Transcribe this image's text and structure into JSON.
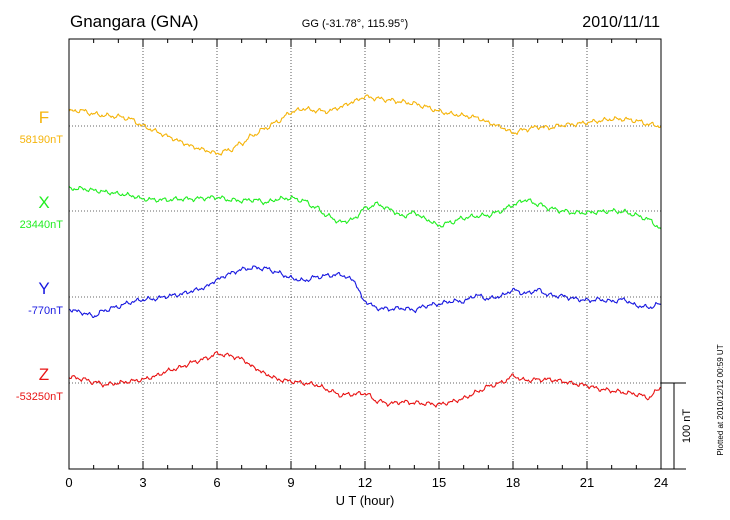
{
  "header": {
    "station": "Gnangara (GNA)",
    "coords": "GG (-31.78°, 115.95°)",
    "date": "2010/11/11"
  },
  "footer": {
    "plotted": "Plotted at 2010/12/12 00:59 UT"
  },
  "chart_data": {
    "type": "line",
    "title": "Gnangara (GNA)",
    "xlabel": "U T (hour)",
    "xlim": [
      0,
      24
    ],
    "x_ticks": [
      0,
      3,
      6,
      9,
      12,
      15,
      18,
      21,
      24
    ],
    "x_tick_labels": [
      "0",
      "3",
      "6",
      "9",
      "12",
      "15",
      "18",
      "21",
      "24"
    ],
    "grid": true,
    "scale_bar": {
      "label": "100 nT",
      "value_nT": 100
    },
    "x": [
      0,
      0.5,
      1,
      1.5,
      2,
      2.5,
      3,
      3.5,
      4,
      4.5,
      5,
      5.5,
      6,
      6.5,
      7,
      7.5,
      8,
      8.5,
      9,
      9.5,
      10,
      10.5,
      11,
      11.5,
      12,
      12.5,
      13,
      13.5,
      14,
      14.5,
      15,
      15.5,
      16,
      16.5,
      17,
      17.5,
      18,
      18.5,
      19,
      19.5,
      20,
      20.5,
      21,
      21.5,
      22,
      22.5,
      23,
      23.5,
      24
    ],
    "series": [
      {
        "name": "F",
        "color": "#f5b40a",
        "baseline_label": "58190nT",
        "baseline_nT": 58190,
        "values": [
          17,
          18,
          14,
          12,
          11,
          8,
          0,
          -6,
          -12,
          -18,
          -24,
          -28,
          -32,
          -28,
          -20,
          -10,
          -2,
          6,
          16,
          20,
          18,
          17,
          22,
          28,
          34,
          32,
          30,
          28,
          26,
          22,
          17,
          14,
          12,
          10,
          4,
          -1,
          -8,
          -4,
          -1,
          -2,
          1,
          2,
          4,
          6,
          8,
          8,
          6,
          2,
          0
        ]
      },
      {
        "name": "X",
        "color": "#22ee22",
        "baseline_label": "23440nT",
        "baseline_nT": 23440,
        "values": [
          26,
          26,
          24,
          22,
          20,
          18,
          14,
          13,
          13,
          14,
          14,
          15,
          16,
          13,
          12,
          13,
          10,
          14,
          15,
          12,
          4,
          -6,
          -13,
          -10,
          3,
          8,
          2,
          -6,
          -2,
          -10,
          -17,
          -13,
          -8,
          -6,
          -5,
          0,
          7,
          13,
          8,
          3,
          0,
          -2,
          -2,
          -1,
          0,
          -1,
          -5,
          -10,
          -21
        ]
      },
      {
        "name": "Y",
        "color": "#1818e0",
        "baseline_label": "-770nT",
        "baseline_nT": -770,
        "values": [
          -14,
          -18,
          -22,
          -15,
          -11,
          -6,
          -3,
          -2,
          1,
          3,
          7,
          11,
          20,
          27,
          32,
          34,
          33,
          28,
          22,
          19,
          23,
          25,
          26,
          20,
          -5,
          -13,
          -14,
          -13,
          -15,
          -10,
          -8,
          -5,
          -5,
          2,
          -2,
          1,
          8,
          4,
          8,
          2,
          1,
          -2,
          -4,
          -3,
          -5,
          -3,
          -10,
          -12,
          -8
        ]
      },
      {
        "name": "Z",
        "color": "#e81414",
        "baseline_label": "-53250nT",
        "baseline_nT": -53250,
        "values": [
          7,
          5,
          1,
          -2,
          0,
          2,
          4,
          8,
          14,
          18,
          24,
          28,
          34,
          32,
          28,
          18,
          10,
          4,
          2,
          0,
          -2,
          -8,
          -14,
          -13,
          -12,
          -21,
          -24,
          -22,
          -23,
          -24,
          -25,
          -22,
          -18,
          -11,
          -4,
          0,
          8,
          3,
          4,
          4,
          2,
          -1,
          -3,
          -7,
          -9,
          -11,
          -13,
          -17,
          -5
        ]
      }
    ]
  }
}
